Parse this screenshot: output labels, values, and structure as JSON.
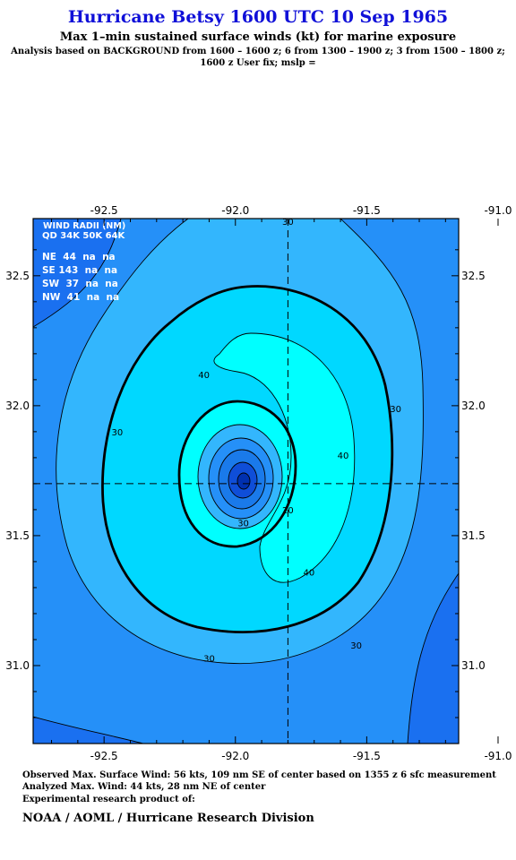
{
  "header": {
    "title": "Hurricane Betsy 1600 UTC 10 Sep 1965",
    "subtitle": "Max 1–min sustained surface winds (kt) for marine exposure",
    "analysis_line1": "Analysis based on  BACKGROUND from 1600 – 1600 z;  6 from 1300 – 1900 z;  3 from 1500 – 1800 z;",
    "analysis_line2": "1600 z User fix; mslp ="
  },
  "wind_radii": {
    "title": "WIND RADII (NM)",
    "header": "QD 34K 50K 64K",
    "rows": [
      "NE  44  na  na",
      "SE 143  na  na",
      "SW  37  na  na",
      "NW  41  na  na"
    ]
  },
  "footer": {
    "observed": "Observed Max. Surface Wind: 56 kts, 109 nm SE of center based on 1355 z 6 sfc measurement",
    "analyzed": "Analyzed Max. Wind: 44 kts, 28 nm NE of center",
    "product": "Experimental research product of:",
    "org": "NOAA / AOML / Hurricane Research Division"
  },
  "chart_data": {
    "type": "contour",
    "title": "Hurricane Betsy 1600 UTC 10 Sep 1965",
    "xlim": [
      -92.77,
      -91.15
    ],
    "ylim": [
      30.7,
      32.72
    ],
    "x_ticks": [
      -92.5,
      -92.0,
      -91.5,
      -91.0
    ],
    "x_tick_labels": [
      "-92.5",
      "-92.0",
      "-91.5",
      "-91.0"
    ],
    "y_ticks": [
      31.0,
      31.5,
      32.0,
      32.5
    ],
    "y_tick_labels": [
      "31.0",
      "31.5",
      "32.0",
      "32.5"
    ],
    "center": {
      "lon": -91.8,
      "lat": 31.7
    },
    "contour_levels_kt": [
      20,
      30,
      40
    ],
    "contour_labels": [
      {
        "text": "30",
        "lon": -91.8,
        "lat": 32.71
      },
      {
        "text": "30",
        "lon": -92.45,
        "lat": 31.9
      },
      {
        "text": "30",
        "lon": -91.39,
        "lat": 31.99
      },
      {
        "text": "30",
        "lon": -92.1,
        "lat": 31.03
      },
      {
        "text": "30",
        "lon": -91.54,
        "lat": 31.08
      },
      {
        "text": "30",
        "lon": -91.97,
        "lat": 31.55
      },
      {
        "text": "40",
        "lon": -92.12,
        "lat": 32.12
      },
      {
        "text": "40",
        "lon": -91.59,
        "lat": 31.81
      },
      {
        "text": "40",
        "lon": -91.72,
        "lat": 31.36
      },
      {
        "text": "20",
        "lon": -91.8,
        "lat": 31.6
      }
    ],
    "fill_colors": [
      "#0b3fd6",
      "#1a70f0",
      "#2590f8",
      "#33b6fd",
      "#00d8ff",
      "#00ffff",
      "#1a7aea",
      "#0f4ed8",
      "#0030b0"
    ],
    "thick_contours_kt": [
      34
    ]
  }
}
